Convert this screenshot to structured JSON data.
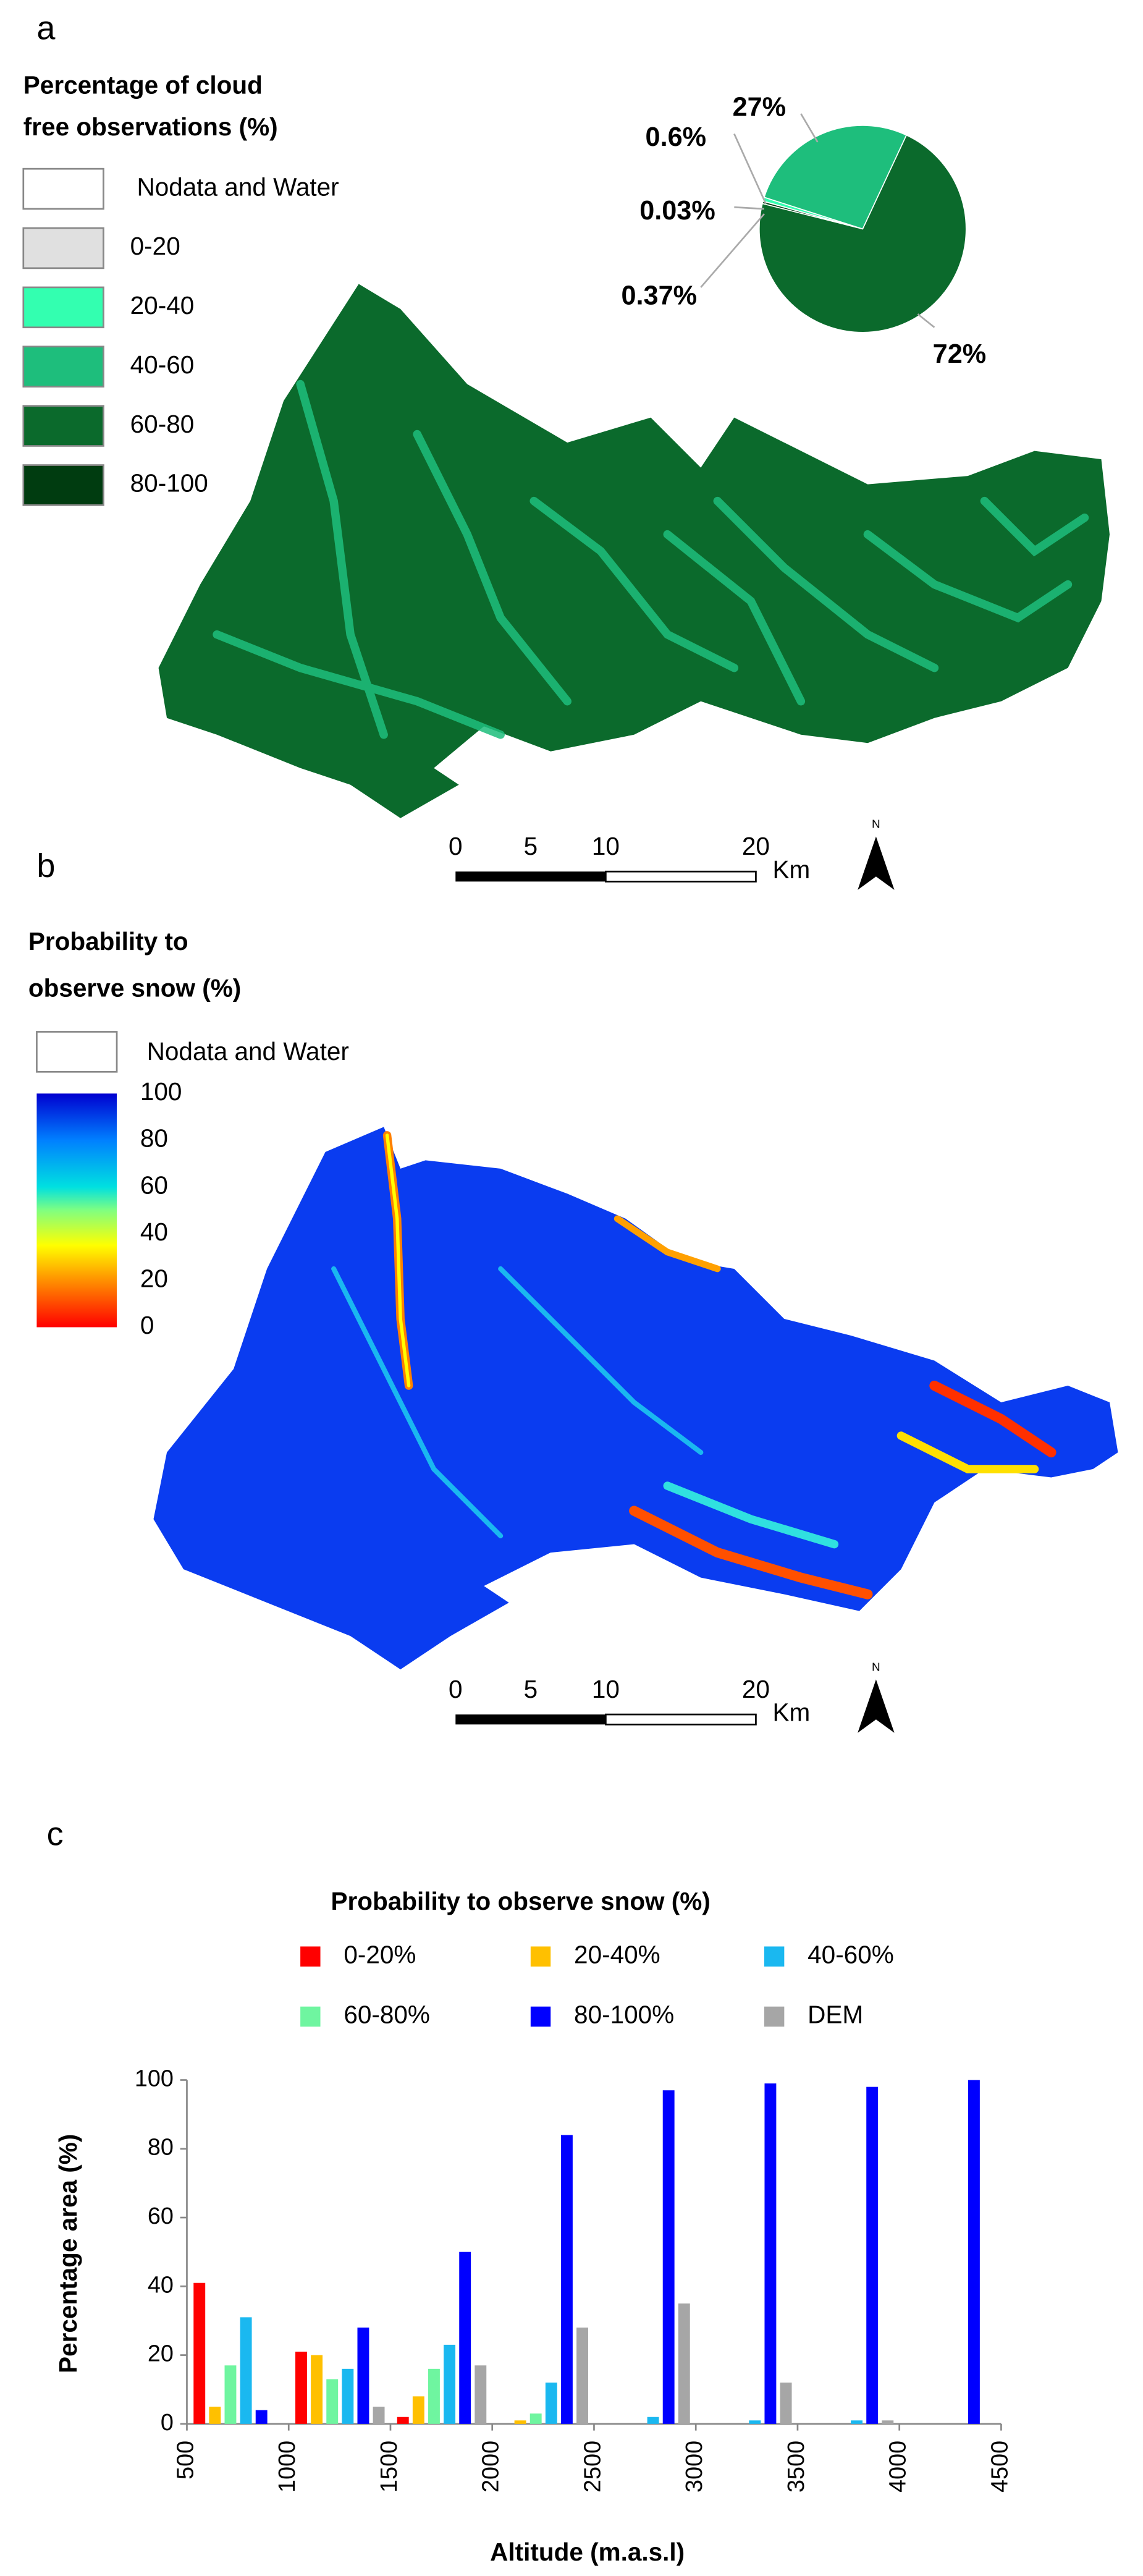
{
  "panel_a": {
    "label": "a",
    "legend_title": [
      "Percentage of cloud",
      "free observations  (%)"
    ],
    "legend": [
      {
        "label": "Nodata and Water",
        "color": "#ffffff"
      },
      {
        "label": "0-20",
        "color": "#e0e0e0"
      },
      {
        "label": "20-40",
        "color": "#33ffb0"
      },
      {
        "label": "40-60",
        "color": "#1ebe7c"
      },
      {
        "label": "60-80",
        "color": "#0b6a2c"
      },
      {
        "label": "80-100",
        "color": "#003c10"
      }
    ],
    "scale": {
      "ticks": [
        0,
        5,
        10,
        20
      ],
      "unit": "Km",
      "north": "N"
    }
  },
  "panel_b": {
    "label": "b",
    "legend_title": [
      "Probability to",
      "observe snow (%)"
    ],
    "nodata": "Nodata and Water",
    "colorbar_ticks": [
      100,
      80,
      60,
      40,
      20,
      0
    ],
    "scale": {
      "ticks": [
        0,
        5,
        10,
        20
      ],
      "unit": "Km",
      "north": "N"
    }
  },
  "panel_c": {
    "label": "c"
  },
  "chart_data": [
    {
      "type": "pie",
      "values": [
        72,
        0.37,
        0.03,
        0.6,
        27
      ],
      "value_labels": [
        "72%",
        "0.37%",
        "0.03%",
        "0.6%",
        "27%"
      ],
      "colors": [
        "#0b6a2c",
        "#003c10",
        "#e0e0e0",
        "#33ffb0",
        "#1ebe7c"
      ],
      "label_colors": [
        "#1a7a30",
        "#1e4d1e",
        "#c0c0c0",
        "#40f0a8",
        "#30d08c"
      ]
    },
    {
      "type": "bar",
      "title": "Probability to observe snow (%)",
      "x_label": "Altitude (m.a.s.l)",
      "y_label": "Percentage  area (%)",
      "categories": [
        null,
        null,
        null,
        null,
        null,
        null,
        null,
        null
      ],
      "series": [
        {
          "name": "0-20%",
          "color": "#ff0000",
          "values": [
            41,
            21,
            2,
            0,
            0,
            0,
            0,
            0
          ]
        },
        {
          "name": "20-40%",
          "color": "#ffc000",
          "values": [
            5,
            20,
            8,
            1,
            0,
            0,
            0,
            0
          ]
        },
        {
          "name": "60-80%",
          "color": "#6ff5a0",
          "values": [
            17,
            13,
            16,
            3,
            0,
            0,
            0,
            0
          ]
        },
        {
          "name": "40-60%",
          "color": "#1ab8f0",
          "values": [
            31,
            16,
            23,
            12,
            2,
            1,
            1,
            0
          ]
        },
        {
          "name": "80-100%",
          "color": "#0000ff",
          "values": [
            4,
            28,
            50,
            84,
            97,
            99,
            98,
            100
          ]
        },
        {
          "name": "DEM",
          "color": "#a6a6a6",
          "values": [
            0,
            5,
            17,
            28,
            35,
            12,
            1,
            0
          ]
        }
      ],
      "xlim": [
        500,
        4500
      ],
      "xticks": [
        500,
        1000,
        1500,
        2000,
        2500,
        3000,
        3500,
        4000,
        4500
      ],
      "ylim": [
        0,
        100
      ],
      "yticks": [
        0,
        20,
        40,
        60,
        80,
        100
      ],
      "grid": false
    }
  ]
}
